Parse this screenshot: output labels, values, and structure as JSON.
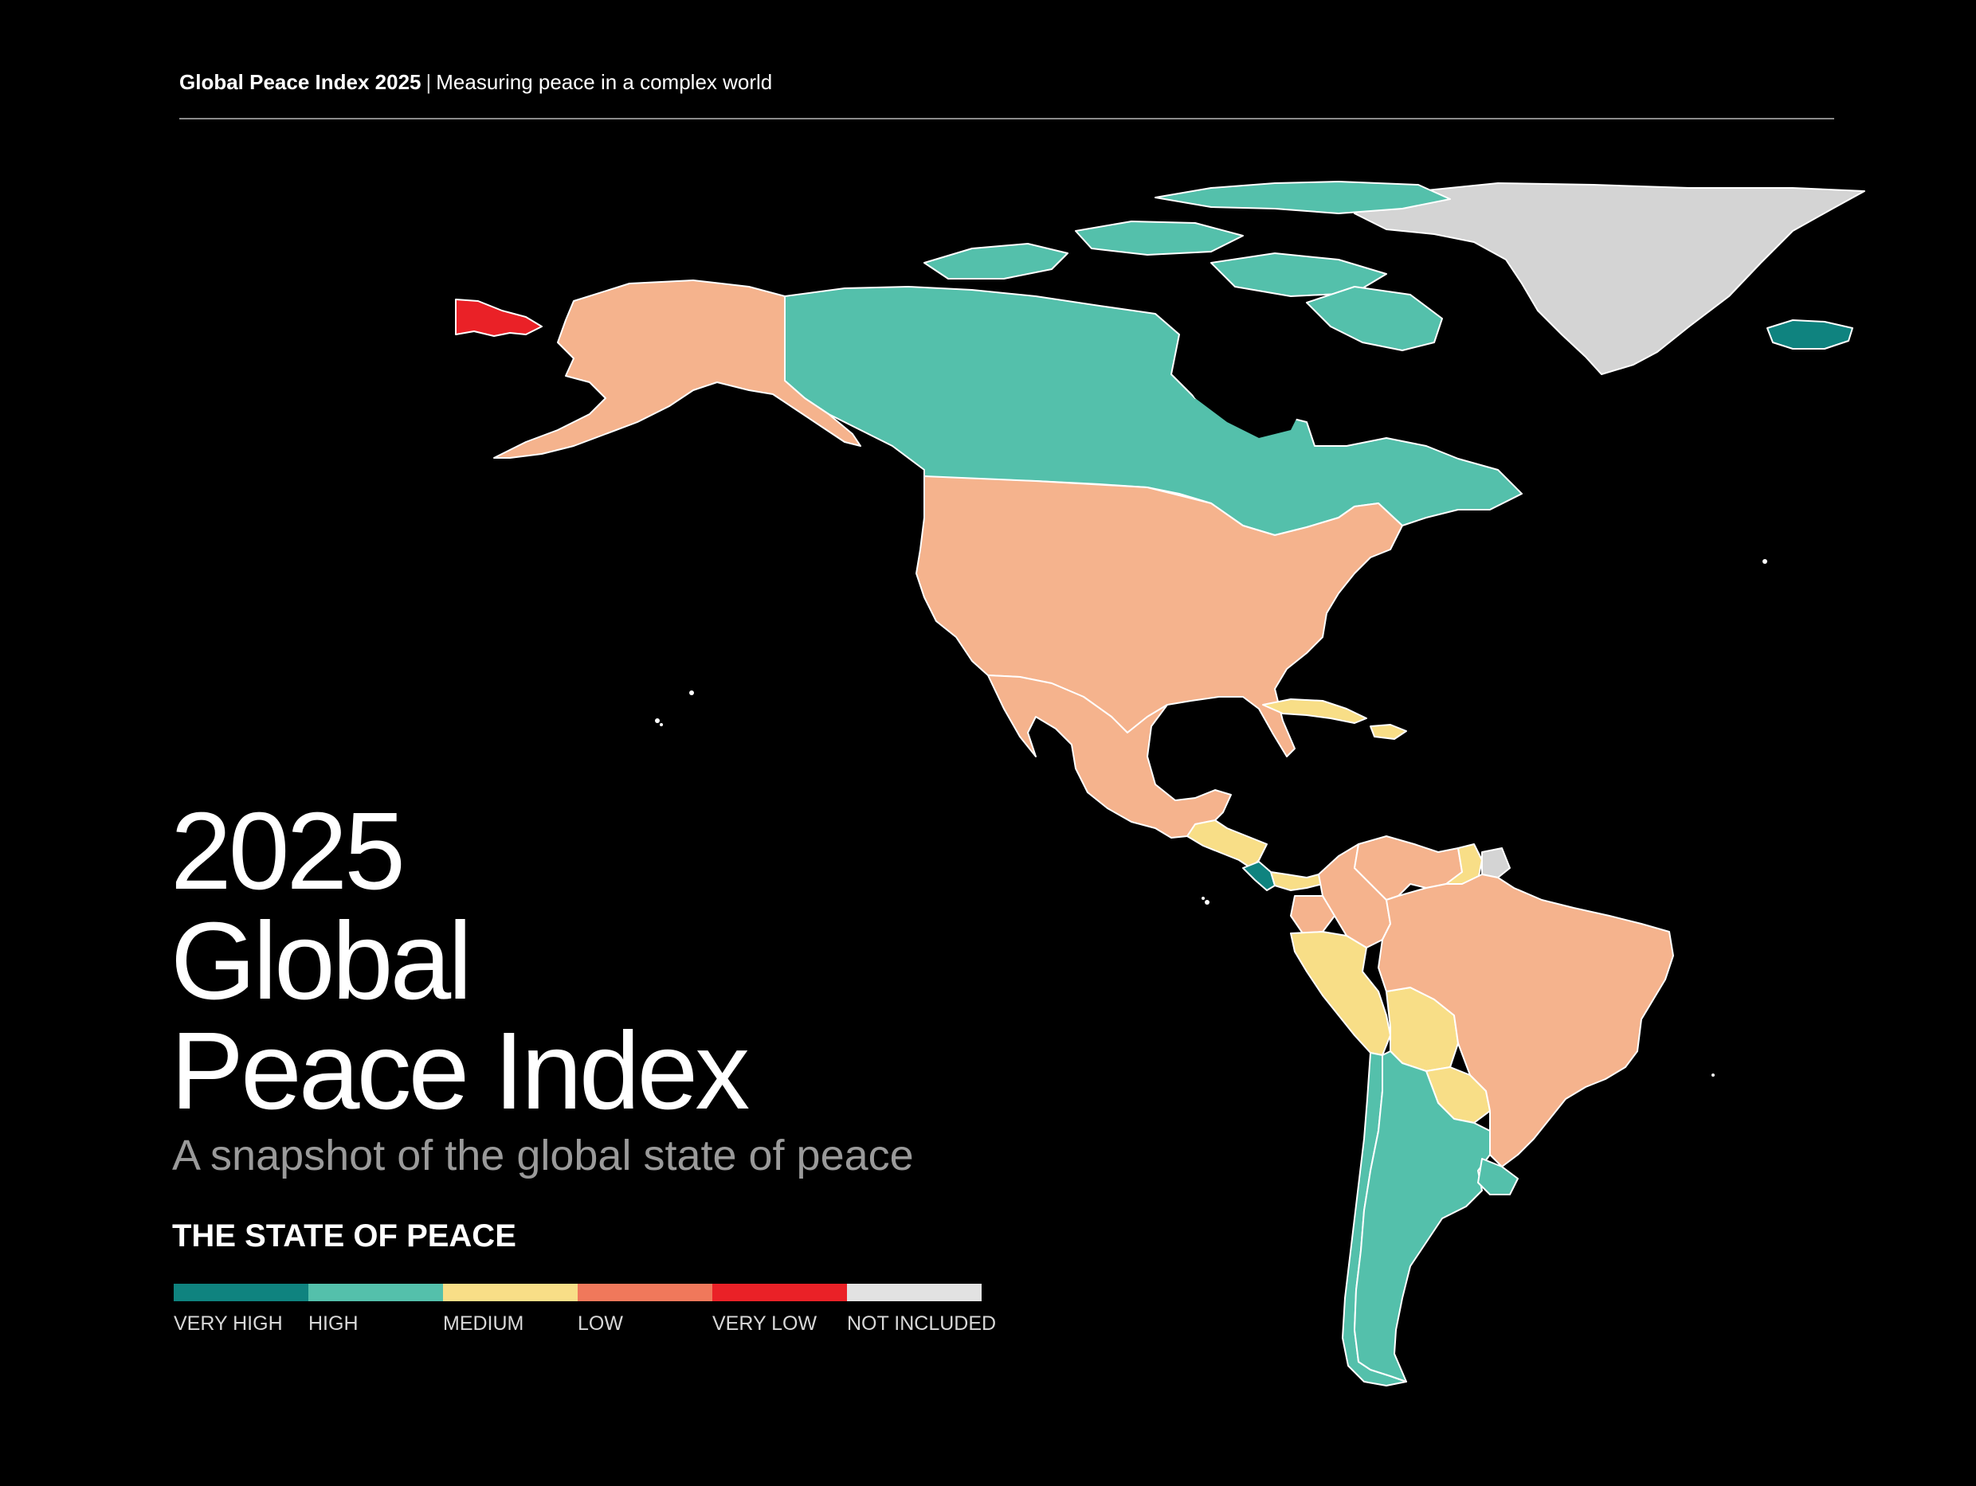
{
  "header": {
    "title": "Global Peace Index 2025",
    "separator": "|",
    "tagline": "Measuring peace in a complex world"
  },
  "title": {
    "line1": "2025",
    "line2": "Global",
    "line3": "Peace Index"
  },
  "subtitle": "A snapshot of the global state of peace",
  "legend": {
    "title": "THE STATE OF PEACE",
    "items": [
      {
        "label": "VERY HIGH",
        "color": "#0f837f"
      },
      {
        "label": "HIGH",
        "color": "#54c0ab"
      },
      {
        "label": "MEDIUM",
        "color": "#f8de87"
      },
      {
        "label": "LOW",
        "color": "#f0785b"
      },
      {
        "label": "VERY LOW",
        "color": "#ea2127"
      },
      {
        "label": "NOT INCLUDED",
        "color": "#e2e2e2"
      }
    ]
  },
  "map_colors": {
    "very_high": "#0f837f",
    "high": "#54c0ab",
    "medium": "#f8de87",
    "low_map": "#f5b38d",
    "very_low": "#ea2127",
    "not_included": "#d4d4d4",
    "border": "#ffffff"
  }
}
